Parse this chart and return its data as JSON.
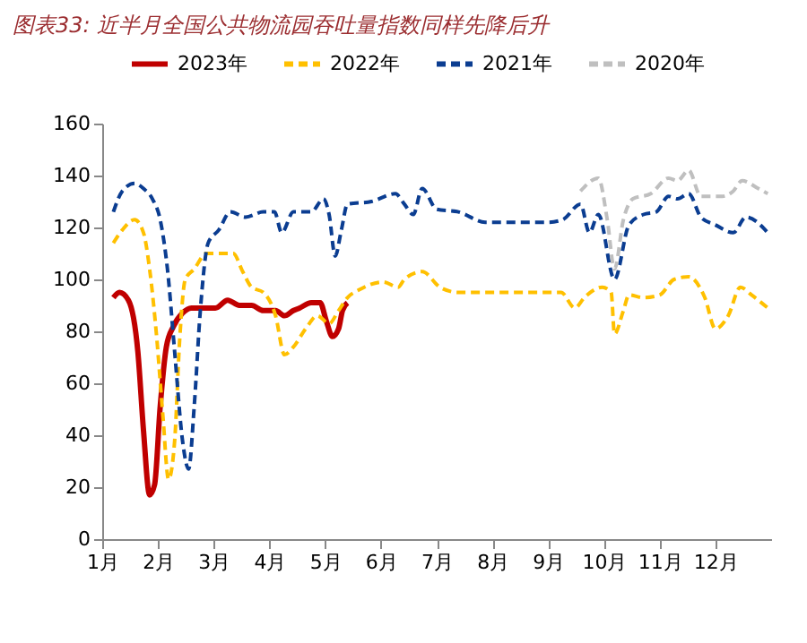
{
  "chart_data": {
    "type": "line",
    "title": "图表33: 近半月全国公共物流园吞吐量指数同样先降后升",
    "xlim": [
      1,
      13
    ],
    "xticks": [
      {
        "value": 1,
        "label": "1月"
      },
      {
        "value": 2,
        "label": "2月"
      },
      {
        "value": 3,
        "label": "3月"
      },
      {
        "value": 4,
        "label": "4月"
      },
      {
        "value": 5,
        "label": "5月"
      },
      {
        "value": 6,
        "label": "6月"
      },
      {
        "value": 7,
        "label": "7月"
      },
      {
        "value": 8,
        "label": "8月"
      },
      {
        "value": 9,
        "label": "9月"
      },
      {
        "value": 10,
        "label": "10月"
      },
      {
        "value": 11,
        "label": "11月"
      },
      {
        "value": 12,
        "label": "12月"
      }
    ],
    "ylim": [
      0,
      160
    ],
    "yticks": [
      0,
      20,
      40,
      60,
      80,
      100,
      120,
      140,
      160
    ],
    "grid": false,
    "legend": "top",
    "marker": "none",
    "series": [
      {
        "name": "2023年",
        "color": "#c00000",
        "line_style": "solid",
        "x": [
          1.2,
          1.31,
          1.47,
          1.64,
          1.74,
          1.85,
          1.94,
          2.04,
          2.15,
          2.28,
          2.44,
          2.6,
          2.82,
          3.03,
          3.25,
          3.46,
          3.68,
          3.89,
          4.11,
          4.27,
          4.43,
          4.54,
          4.75,
          4.91,
          5.02,
          5.13,
          5.24,
          5.31,
          5.4
        ],
        "values": [
          93,
          95,
          92,
          72,
          42,
          17,
          21,
          51,
          74,
          82,
          87,
          89,
          89,
          89,
          92,
          90,
          90,
          88,
          88,
          86,
          88,
          89,
          91,
          91,
          84,
          78,
          81,
          88,
          91
        ]
      },
      {
        "name": "2022年",
        "color": "#ffc000",
        "line_style": "dashed",
        "x": [
          1.2,
          1.36,
          1.58,
          1.74,
          1.85,
          1.98,
          2.09,
          2.19,
          2.3,
          2.39,
          2.49,
          2.65,
          2.87,
          3.14,
          3.35,
          3.52,
          3.68,
          3.89,
          4.11,
          4.27,
          4.43,
          4.65,
          4.86,
          5.07,
          5.24,
          5.4,
          5.61,
          6.04,
          6.31,
          6.42,
          6.74,
          7.06,
          7.39,
          7.94,
          8.58,
          9.23,
          9.48,
          9.65,
          9.97,
          10.13,
          10.19,
          10.35,
          10.45,
          10.71,
          11.0,
          11.26,
          11.52,
          11.81,
          12.0,
          12.23,
          12.45,
          12.65,
          12.94
        ],
        "values": [
          114,
          119,
          123,
          118,
          104,
          77,
          47,
          23,
          38,
          77,
          100,
          104,
          110,
          110,
          110,
          103,
          97,
          95,
          86,
          71,
          74,
          81,
          86,
          83,
          88,
          93,
          96,
          99,
          97,
          100,
          103,
          97,
          95,
          95,
          95,
          95,
          89,
          93,
          97,
          95,
          79,
          88,
          94,
          93,
          94,
          100,
          101,
          93,
          81,
          86,
          97,
          94,
          89
        ]
      },
      {
        "name": "2021年",
        "color": "#0b3d91",
        "line_style": "dashed",
        "x": [
          1.2,
          1.36,
          1.58,
          1.74,
          1.9,
          2.04,
          2.17,
          2.3,
          2.44,
          2.55,
          2.65,
          2.76,
          2.9,
          3.09,
          3.3,
          3.57,
          3.89,
          4.09,
          4.22,
          4.43,
          4.75,
          4.97,
          5.07,
          5.18,
          5.29,
          5.4,
          5.83,
          6.26,
          6.42,
          6.58,
          6.74,
          7.0,
          7.39,
          7.87,
          8.45,
          9.0,
          9.26,
          9.58,
          9.74,
          9.9,
          10.19,
          10.45,
          10.71,
          10.94,
          11.16,
          11.32,
          11.52,
          11.74,
          12.0,
          12.32,
          12.55,
          12.94
        ],
        "values": [
          126,
          134,
          137,
          135,
          131,
          123,
          104,
          72,
          38,
          27,
          51,
          88,
          114,
          119,
          126,
          124,
          126,
          126,
          118,
          126,
          126,
          131,
          125,
          109,
          119,
          129,
          130,
          133,
          129,
          125,
          135,
          127,
          126,
          122,
          122,
          122,
          123,
          129,
          118,
          125,
          100,
          121,
          125,
          126,
          132,
          131,
          133,
          124,
          121,
          118,
          124,
          118
        ]
      },
      {
        "name": "2020年",
        "color": "#bfbfbf",
        "line_style": "dashed",
        "x": [
          9.58,
          9.9,
          10.06,
          10.19,
          10.35,
          10.52,
          10.84,
          11.16,
          11.32,
          11.52,
          11.74,
          12.13,
          12.32,
          12.48,
          12.77,
          12.94
        ],
        "values": [
          134,
          139,
          123,
          104,
          123,
          131,
          133,
          139,
          138,
          142,
          132,
          132,
          134,
          138,
          135,
          133
        ]
      }
    ]
  }
}
